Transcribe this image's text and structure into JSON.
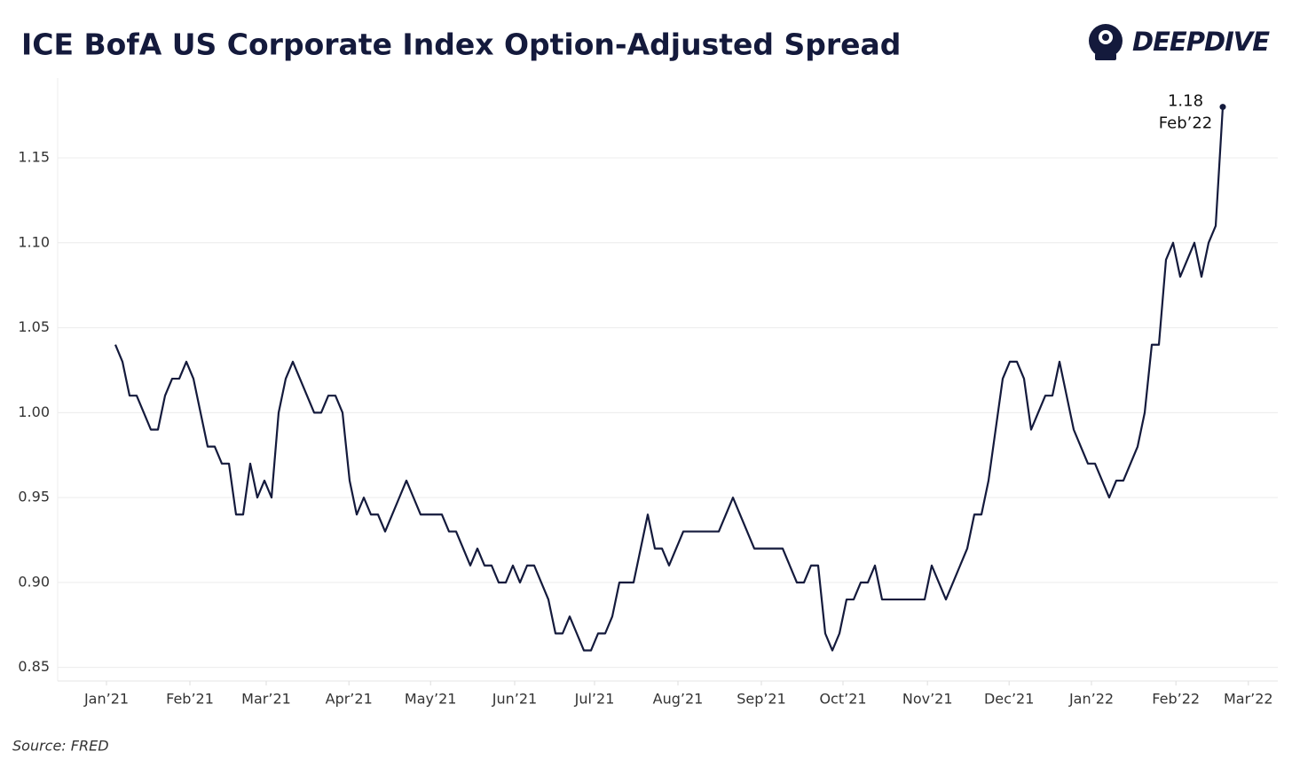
{
  "chart_data": {
    "type": "line",
    "title": "ICE BofA US Corporate Index Option-Adjusted Spread",
    "brand": "DEEPDIVE",
    "source": "Source: FRED",
    "annotations": [
      "1.18",
      "Feb’22"
    ],
    "series": [
      {
        "name": "ICE BofA US Corporate Index OAS",
        "color": "#141a3c",
        "values": [
          1.04,
          1.03,
          1.01,
          1.01,
          1.0,
          0.99,
          0.99,
          1.01,
          1.02,
          1.02,
          1.03,
          1.02,
          1.0,
          0.98,
          0.98,
          0.97,
          0.97,
          0.94,
          0.94,
          0.97,
          0.95,
          0.96,
          0.95,
          1.0,
          1.02,
          1.03,
          1.02,
          1.01,
          1.0,
          1.0,
          1.01,
          1.01,
          1.0,
          0.96,
          0.94,
          0.95,
          0.94,
          0.94,
          0.93,
          0.94,
          0.95,
          0.96,
          0.95,
          0.94,
          0.94,
          0.94,
          0.94,
          0.93,
          0.93,
          0.92,
          0.91,
          0.92,
          0.91,
          0.91,
          0.9,
          0.9,
          0.91,
          0.9,
          0.91,
          0.91,
          0.9,
          0.89,
          0.87,
          0.87,
          0.88,
          0.87,
          0.86,
          0.86,
          0.87,
          0.87,
          0.88,
          0.9,
          0.9,
          0.9,
          0.92,
          0.94,
          0.92,
          0.92,
          0.91,
          0.92,
          0.93,
          0.93,
          0.93,
          0.93,
          0.93,
          0.93,
          0.94,
          0.95,
          0.94,
          0.93,
          0.92,
          0.92,
          0.92,
          0.92,
          0.92,
          0.91,
          0.9,
          0.9,
          0.91,
          0.91,
          0.87,
          0.86,
          0.87,
          0.89,
          0.89,
          0.9,
          0.9,
          0.91,
          0.89,
          0.89,
          0.89,
          0.89,
          0.89,
          0.89,
          0.89,
          0.91,
          0.9,
          0.89,
          0.9,
          0.91,
          0.92,
          0.94,
          0.94,
          0.96,
          0.99,
          1.02,
          1.03,
          1.03,
          1.02,
          0.99,
          1.0,
          1.01,
          1.01,
          1.03,
          1.01,
          0.99,
          0.98,
          0.97,
          0.97,
          0.96,
          0.95,
          0.96,
          0.96,
          0.97,
          0.98,
          1.0,
          1.04,
          1.04,
          1.09,
          1.1,
          1.08,
          1.09,
          1.1,
          1.08,
          1.1,
          1.11,
          1.18
        ]
      }
    ],
    "xlim": [
      -8.125,
      163.75
    ],
    "xticks": [
      {
        "value": -1.25,
        "label": "Jan’21"
      },
      {
        "value": 10.5,
        "label": "Feb’21"
      },
      {
        "value": 21.25,
        "label": "Mar’21"
      },
      {
        "value": 32.9,
        "label": "Apr’21"
      },
      {
        "value": 44.4,
        "label": "May’21"
      },
      {
        "value": 56.25,
        "label": "Jun’21"
      },
      {
        "value": 67.5,
        "label": "Jul’21"
      },
      {
        "value": 79.25,
        "label": "Aug’21"
      },
      {
        "value": 91,
        "label": "Sep’21"
      },
      {
        "value": 102.5,
        "label": "Oct’21"
      },
      {
        "value": 114.4,
        "label": "Nov’21"
      },
      {
        "value": 125.9,
        "label": "Dec’21"
      },
      {
        "value": 137.5,
        "label": "Jan’22"
      },
      {
        "value": 149.4,
        "label": "Feb’22"
      },
      {
        "value": 159.6,
        "label": "Mar’22"
      }
    ],
    "ylim": [
      0.842,
      1.197
    ],
    "yticks": [
      0.85,
      {
        "value": 0.9,
        "label": "0.90"
      },
      0.95,
      {
        "value": 1.0,
        "label": "1.00"
      },
      1.05,
      {
        "value": 1.1,
        "label": "1.10"
      },
      1.15
    ],
    "grid": true
  }
}
